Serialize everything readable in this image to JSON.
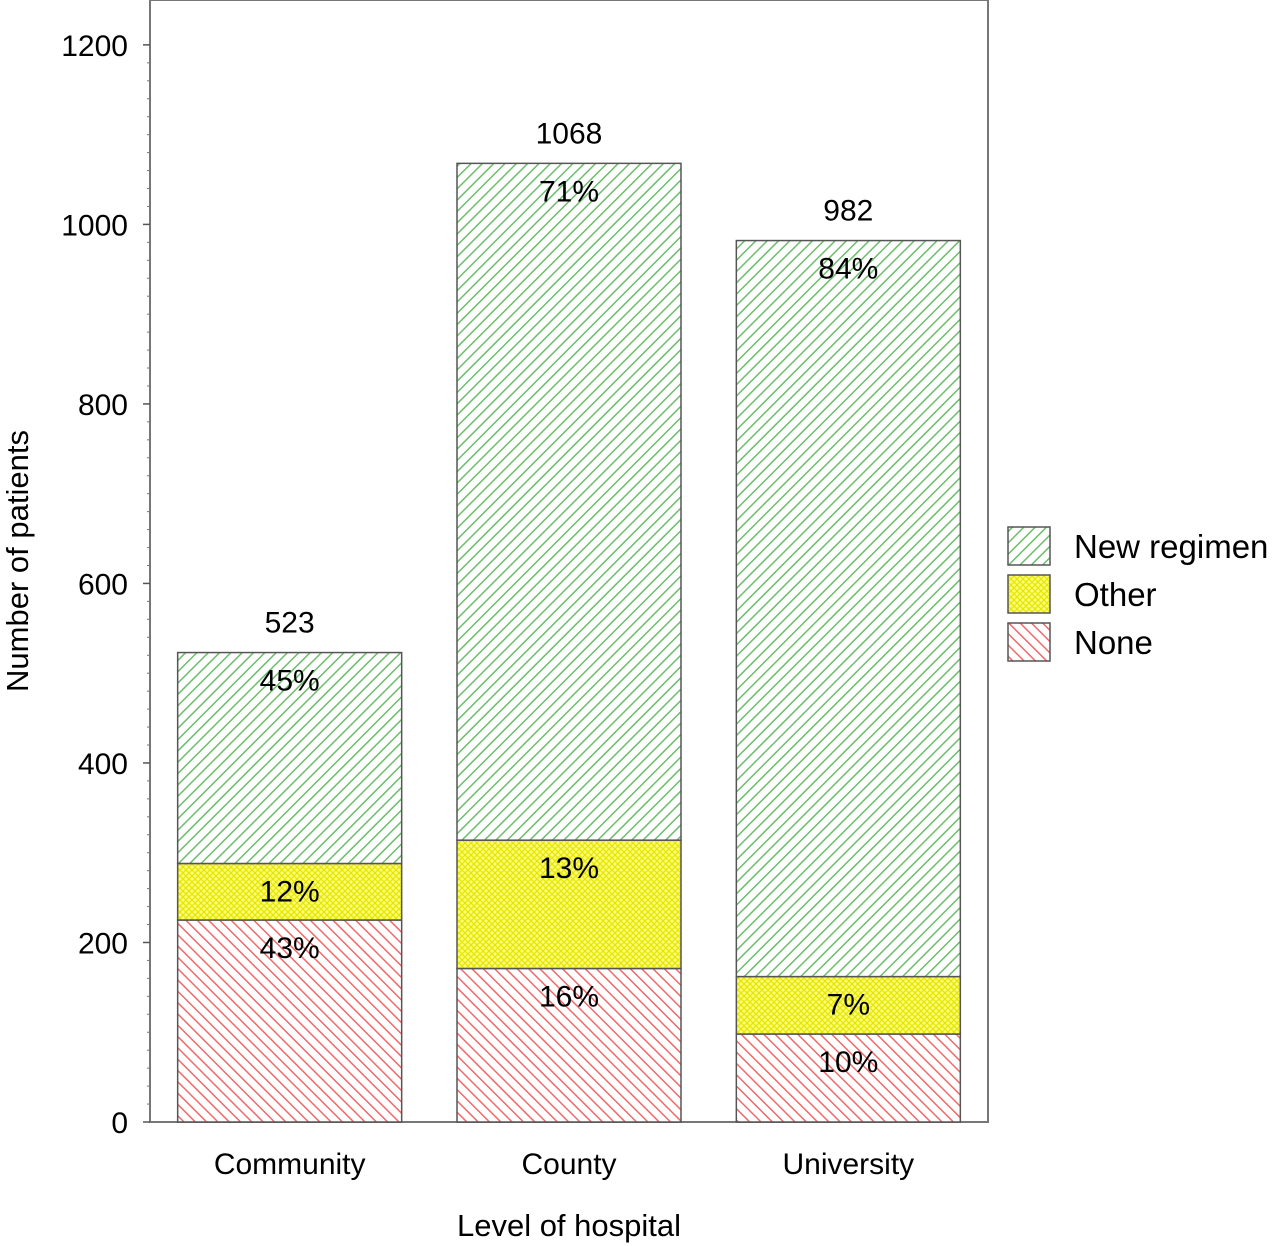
{
  "chart_data": {
    "type": "bar",
    "stacked": true,
    "title": "",
    "xlabel": "Level of hospital",
    "ylabel": "Number of patients",
    "ylim": [
      0,
      1250
    ],
    "yticks": [
      0,
      200,
      400,
      600,
      800,
      1000,
      1200
    ],
    "categories": [
      "Community",
      "County",
      "University"
    ],
    "totals": [
      523,
      1068,
      982
    ],
    "series": [
      {
        "name": "None",
        "values": [
          225,
          171,
          98
        ],
        "labels": [
          "43%",
          "16%",
          "10%"
        ]
      },
      {
        "name": "Other",
        "values": [
          63,
          143,
          64
        ],
        "labels": [
          "12%",
          "13%",
          "7%"
        ]
      },
      {
        "name": "New regimen",
        "values": [
          235,
          754,
          820
        ],
        "labels": [
          "45%",
          "71%",
          "84%"
        ]
      }
    ],
    "legend": {
      "placement": "right",
      "order": [
        "New regimen",
        "Other",
        "None"
      ]
    },
    "grid": false,
    "colors": {
      "New regimen": "#6cbd6c",
      "Other": "#f0f000",
      "None": "#f06a6a",
      "bar_outline": "#555555",
      "frame": "#777777"
    }
  }
}
